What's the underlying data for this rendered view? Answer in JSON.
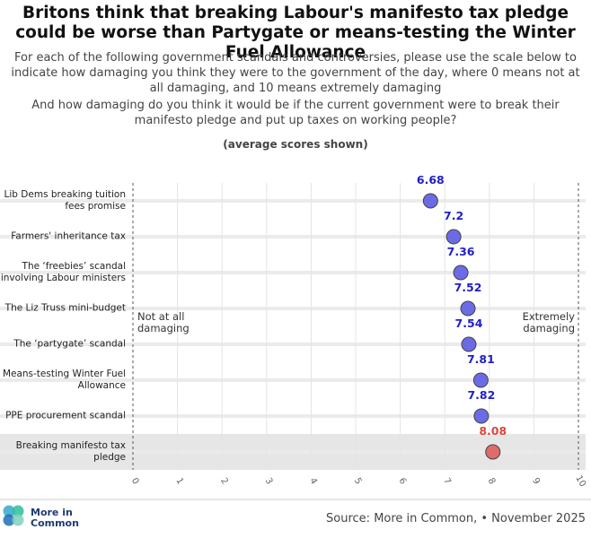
{
  "chart_data": {
    "type": "dot",
    "title": "Britons think that breaking Labour's manifesto tax pledge could be worse than Partygate or means-testing the Winter Fuel Allowance",
    "subtitle": [
      "For each of the following government scandals and controversies, please use the scale below to indicate how damaging you think they were to the government of the day, where 0 means not at all damaging, and 10 means extremely damaging",
      "And how damaging do you think it would be if the current government were to break their manifesto pledge and put up taxes on working people?"
    ],
    "note": "(average scores shown)",
    "categories": [
      "Lib Dems breaking tuition fees promise",
      "Farmers' inheritance tax",
      "The ‘freebies’ scandal involving Labour ministers",
      "The Liz Truss mini-budget",
      "The ‘partygate’ scandal",
      "Means-testing Winter Fuel Allowance",
      "PPE procurement scandal",
      "Breaking manifesto tax pledge"
    ],
    "values": [
      6.68,
      7.2,
      7.36,
      7.52,
      7.54,
      7.81,
      7.82,
      8.08
    ],
    "colors": [
      "#6b6be6",
      "#6b6be6",
      "#6b6be6",
      "#6b6be6",
      "#6b6be6",
      "#6b6be6",
      "#6b6be6",
      "#e06b6b"
    ],
    "label_colors": [
      "#2020c8",
      "#2020c8",
      "#2020c8",
      "#2020c8",
      "#2020c8",
      "#2020c8",
      "#2020c8",
      "#d9473a"
    ],
    "annotations": [
      "Not at all damaging",
      "Extremely damaging"
    ],
    "xlim": [
      0,
      10
    ],
    "xticks": [
      0,
      1,
      2,
      3,
      4,
      5,
      6,
      7,
      8,
      9,
      10
    ],
    "grid": true,
    "logo": "More in Common",
    "source": "Source: More in Common, • November 2025"
  }
}
